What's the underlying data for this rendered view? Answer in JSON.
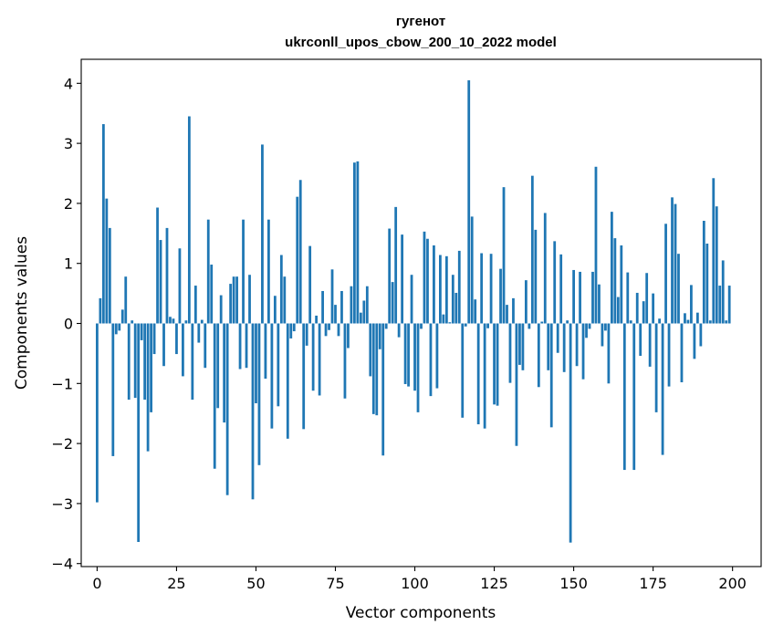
{
  "chart_data": {
    "type": "bar",
    "title": "гугенот",
    "subtitle": "ukrconll_upos_cbow_200_10_2022 model",
    "xlabel": "Vector components",
    "ylabel": "Components values",
    "xlim": [
      -5,
      209
    ],
    "ylim": [
      -4.05,
      4.4
    ],
    "xticks": [
      0,
      25,
      50,
      75,
      100,
      125,
      150,
      175,
      200
    ],
    "yticks": [
      -4,
      -3,
      -2,
      -1,
      0,
      1,
      2,
      3,
      4
    ],
    "xtick_labels": [
      "0",
      "25",
      "50",
      "75",
      "100",
      "125",
      "150",
      "175",
      "200"
    ],
    "ytick_labels": [
      "−4",
      "−3",
      "−2",
      "−1",
      "0",
      "1",
      "2",
      "3",
      "4"
    ],
    "grid": false,
    "bar_color": "#1f77b4",
    "values": [
      -2.98,
      0.42,
      3.32,
      2.08,
      1.59,
      -2.21,
      -0.18,
      -0.12,
      0.23,
      0.78,
      -1.27,
      0.05,
      -1.24,
      -3.64,
      -0.28,
      -1.27,
      -2.13,
      -1.48,
      -0.51,
      1.93,
      1.39,
      -0.71,
      1.59,
      0.11,
      0.08,
      -0.51,
      1.25,
      -0.88,
      0.05,
      3.45,
      -1.27,
      0.63,
      -0.32,
      0.06,
      -0.74,
      1.73,
      0.98,
      -2.42,
      -1.41,
      0.47,
      -1.65,
      -2.86,
      0.66,
      0.78,
      0.78,
      -0.76,
      1.73,
      -0.74,
      0.81,
      -2.93,
      -1.33,
      -2.36,
      2.98,
      -0.92,
      1.73,
      -1.75,
      0.46,
      -1.38,
      1.14,
      0.78,
      -1.92,
      -0.25,
      -0.13,
      2.11,
      2.39,
      -1.76,
      -0.37,
      1.29,
      -1.12,
      0.13,
      -1.2,
      0.54,
      -0.21,
      -0.11,
      0.9,
      0.31,
      -0.21,
      0.54,
      -1.25,
      -0.41,
      0.62,
      2.68,
      2.7,
      0.18,
      0.38,
      0.62,
      -0.88,
      -1.51,
      -1.53,
      -0.43,
      -2.2,
      -0.09,
      1.58,
      0.69,
      1.94,
      -0.23,
      1.48,
      -1.01,
      -1.05,
      0.81,
      -1.12,
      -1.48,
      -0.09,
      1.53,
      1.41,
      -1.21,
      1.3,
      -1.08,
      1.14,
      0.15,
      1.12,
      0.02,
      0.81,
      0.51,
      1.21,
      -1.57,
      -0.05,
      4.05,
      1.78,
      0.4,
      -1.68,
      1.17,
      -1.75,
      -0.08,
      1.16,
      -1.35,
      -1.37,
      0.91,
      2.27,
      0.31,
      -0.99,
      0.42,
      -2.04,
      -0.69,
      -0.78,
      0.72,
      -0.09,
      2.46,
      1.56,
      -1.06,
      0.03,
      1.84,
      -0.78,
      -1.73,
      1.37,
      -0.49,
      1.15,
      -0.81,
      0.05,
      -3.65,
      0.89,
      -0.71,
      0.86,
      -0.93,
      -0.24,
      -0.09,
      0.86,
      2.61,
      0.65,
      -0.38,
      -0.12,
      -1.0,
      1.86,
      1.42,
      0.44,
      1.3,
      -2.44,
      0.85,
      0.05,
      -2.44,
      0.51,
      -0.54,
      0.37,
      0.84,
      -0.72,
      0.5,
      -1.48,
      0.08,
      -2.19,
      1.66,
      -1.05,
      2.1,
      1.99,
      1.16,
      -0.98,
      0.17,
      0.06,
      0.64,
      -0.59,
      0.18,
      -0.38,
      1.71,
      1.33,
      0.05,
      2.42,
      1.95,
      0.63,
      1.05,
      0.05,
      0.63
    ]
  }
}
